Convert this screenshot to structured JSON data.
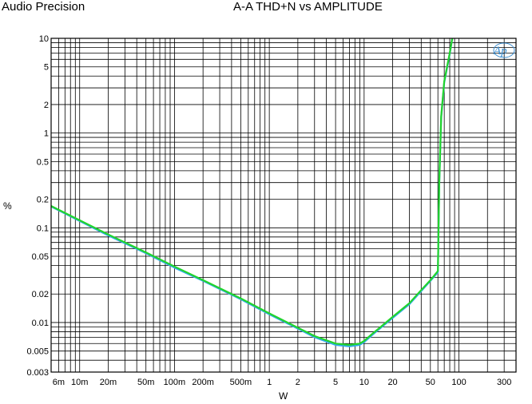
{
  "header": {
    "brand": "Audio Precision",
    "title": "A-A THD+N vs AMPLITUDE"
  },
  "logo_text": "Ap",
  "chart_data": {
    "type": "line",
    "title": "A-A THD+N vs AMPLITUDE",
    "xlabel": "W",
    "ylabel": "%",
    "xscale": "log",
    "yscale": "log",
    "xlim": [
      0.005,
      400
    ],
    "ylim": [
      0.003,
      10
    ],
    "grid": true,
    "x_ticks": [
      {
        "v": 0.006,
        "label": "6m"
      },
      {
        "v": 0.01,
        "label": "10m"
      },
      {
        "v": 0.02,
        "label": "20m"
      },
      {
        "v": 0.05,
        "label": "50m"
      },
      {
        "v": 0.1,
        "label": "100m"
      },
      {
        "v": 0.2,
        "label": "200m"
      },
      {
        "v": 0.5,
        "label": "500m"
      },
      {
        "v": 1,
        "label": "1"
      },
      {
        "v": 2,
        "label": "2"
      },
      {
        "v": 5,
        "label": "5"
      },
      {
        "v": 10,
        "label": "10"
      },
      {
        "v": 20,
        "label": "20"
      },
      {
        "v": 50,
        "label": "50"
      },
      {
        "v": 100,
        "label": "100"
      },
      {
        "v": 300,
        "label": "300"
      }
    ],
    "y_ticks": [
      {
        "v": 10,
        "label": "10"
      },
      {
        "v": 5,
        "label": "5"
      },
      {
        "v": 2,
        "label": "2"
      },
      {
        "v": 1,
        "label": "1"
      },
      {
        "v": 0.5,
        "label": "0.5"
      },
      {
        "v": 0.2,
        "label": "0.2"
      },
      {
        "v": 0.1,
        "label": "0.1"
      },
      {
        "v": 0.05,
        "label": "0.05"
      },
      {
        "v": 0.02,
        "label": "0.02"
      },
      {
        "v": 0.01,
        "label": "0.01"
      },
      {
        "v": 0.005,
        "label": "0.005"
      },
      {
        "v": 0.003,
        "label": "0.003"
      }
    ],
    "series": [
      {
        "color": "#22d42c",
        "x": [
          0.005,
          0.01,
          0.02,
          0.05,
          0.1,
          0.2,
          0.5,
          1,
          2,
          3,
          5,
          7,
          9,
          10,
          12,
          15,
          20,
          30,
          40,
          50,
          60,
          62,
          65,
          70,
          80,
          85
        ],
        "y": [
          0.17,
          0.12,
          0.085,
          0.055,
          0.039,
          0.028,
          0.018,
          0.0125,
          0.0088,
          0.0072,
          0.006,
          0.0058,
          0.006,
          0.0064,
          0.0075,
          0.009,
          0.0115,
          0.016,
          0.022,
          0.028,
          0.035,
          0.3,
          1.5,
          3.5,
          7,
          10
        ]
      },
      {
        "color": "#33aaee",
        "x": [
          0.005,
          0.01,
          0.02,
          0.05,
          0.1,
          0.2,
          0.5,
          1,
          2,
          3,
          5,
          7,
          9,
          10,
          12,
          15,
          20,
          30,
          40,
          50,
          60,
          62,
          65,
          70,
          80,
          85
        ],
        "y": [
          0.168,
          0.118,
          0.083,
          0.054,
          0.038,
          0.0275,
          0.0176,
          0.0122,
          0.0086,
          0.007,
          0.0058,
          0.0056,
          0.0058,
          0.0062,
          0.0073,
          0.0088,
          0.0112,
          0.0156,
          0.0215,
          0.0275,
          0.034,
          0.29,
          1.45,
          3.4,
          6.8,
          10
        ]
      }
    ]
  }
}
